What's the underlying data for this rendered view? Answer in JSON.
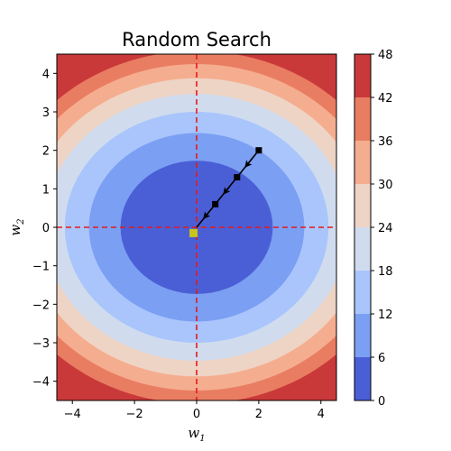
{
  "chart_data": {
    "type": "contour",
    "title": "Random Search",
    "xlabel": {
      "base": "w",
      "sub": "1"
    },
    "ylabel": {
      "base": "w",
      "sub": "2"
    },
    "xlim": [
      -4.5,
      4.5
    ],
    "ylim": [
      -4.5,
      4.5
    ],
    "x_ticks": [
      -4,
      -2,
      0,
      2,
      4
    ],
    "y_ticks": [
      -4,
      -3,
      -2,
      -1,
      0,
      1,
      2,
      3,
      4
    ],
    "grid": false,
    "contour": {
      "function": "w1^2 + 2*w2^2",
      "levels": [
        0,
        6,
        12,
        18,
        24,
        30,
        36,
        42,
        48
      ],
      "colors": [
        "#4a5fd6",
        "#7b9ff2",
        "#a9c5fc",
        "#d0dcee",
        "#eed4c5",
        "#f5ad8f",
        "#e97d62",
        "#c9393a"
      ]
    },
    "colorbar": {
      "ticks": [
        0,
        6,
        12,
        18,
        24,
        30,
        36,
        42,
        48
      ]
    },
    "reference_lines": {
      "x": 0,
      "y": 0,
      "color": "#e31a1c",
      "style": "dashed"
    },
    "path": {
      "points": [
        [
          2.0,
          2.0
        ],
        [
          1.3,
          1.3
        ],
        [
          0.6,
          0.6
        ],
        [
          0.0,
          0.0
        ]
      ],
      "color": "#000000"
    },
    "optimum_marker": {
      "x": -0.1,
      "y": -0.15,
      "color": "#c8c51b"
    }
  }
}
